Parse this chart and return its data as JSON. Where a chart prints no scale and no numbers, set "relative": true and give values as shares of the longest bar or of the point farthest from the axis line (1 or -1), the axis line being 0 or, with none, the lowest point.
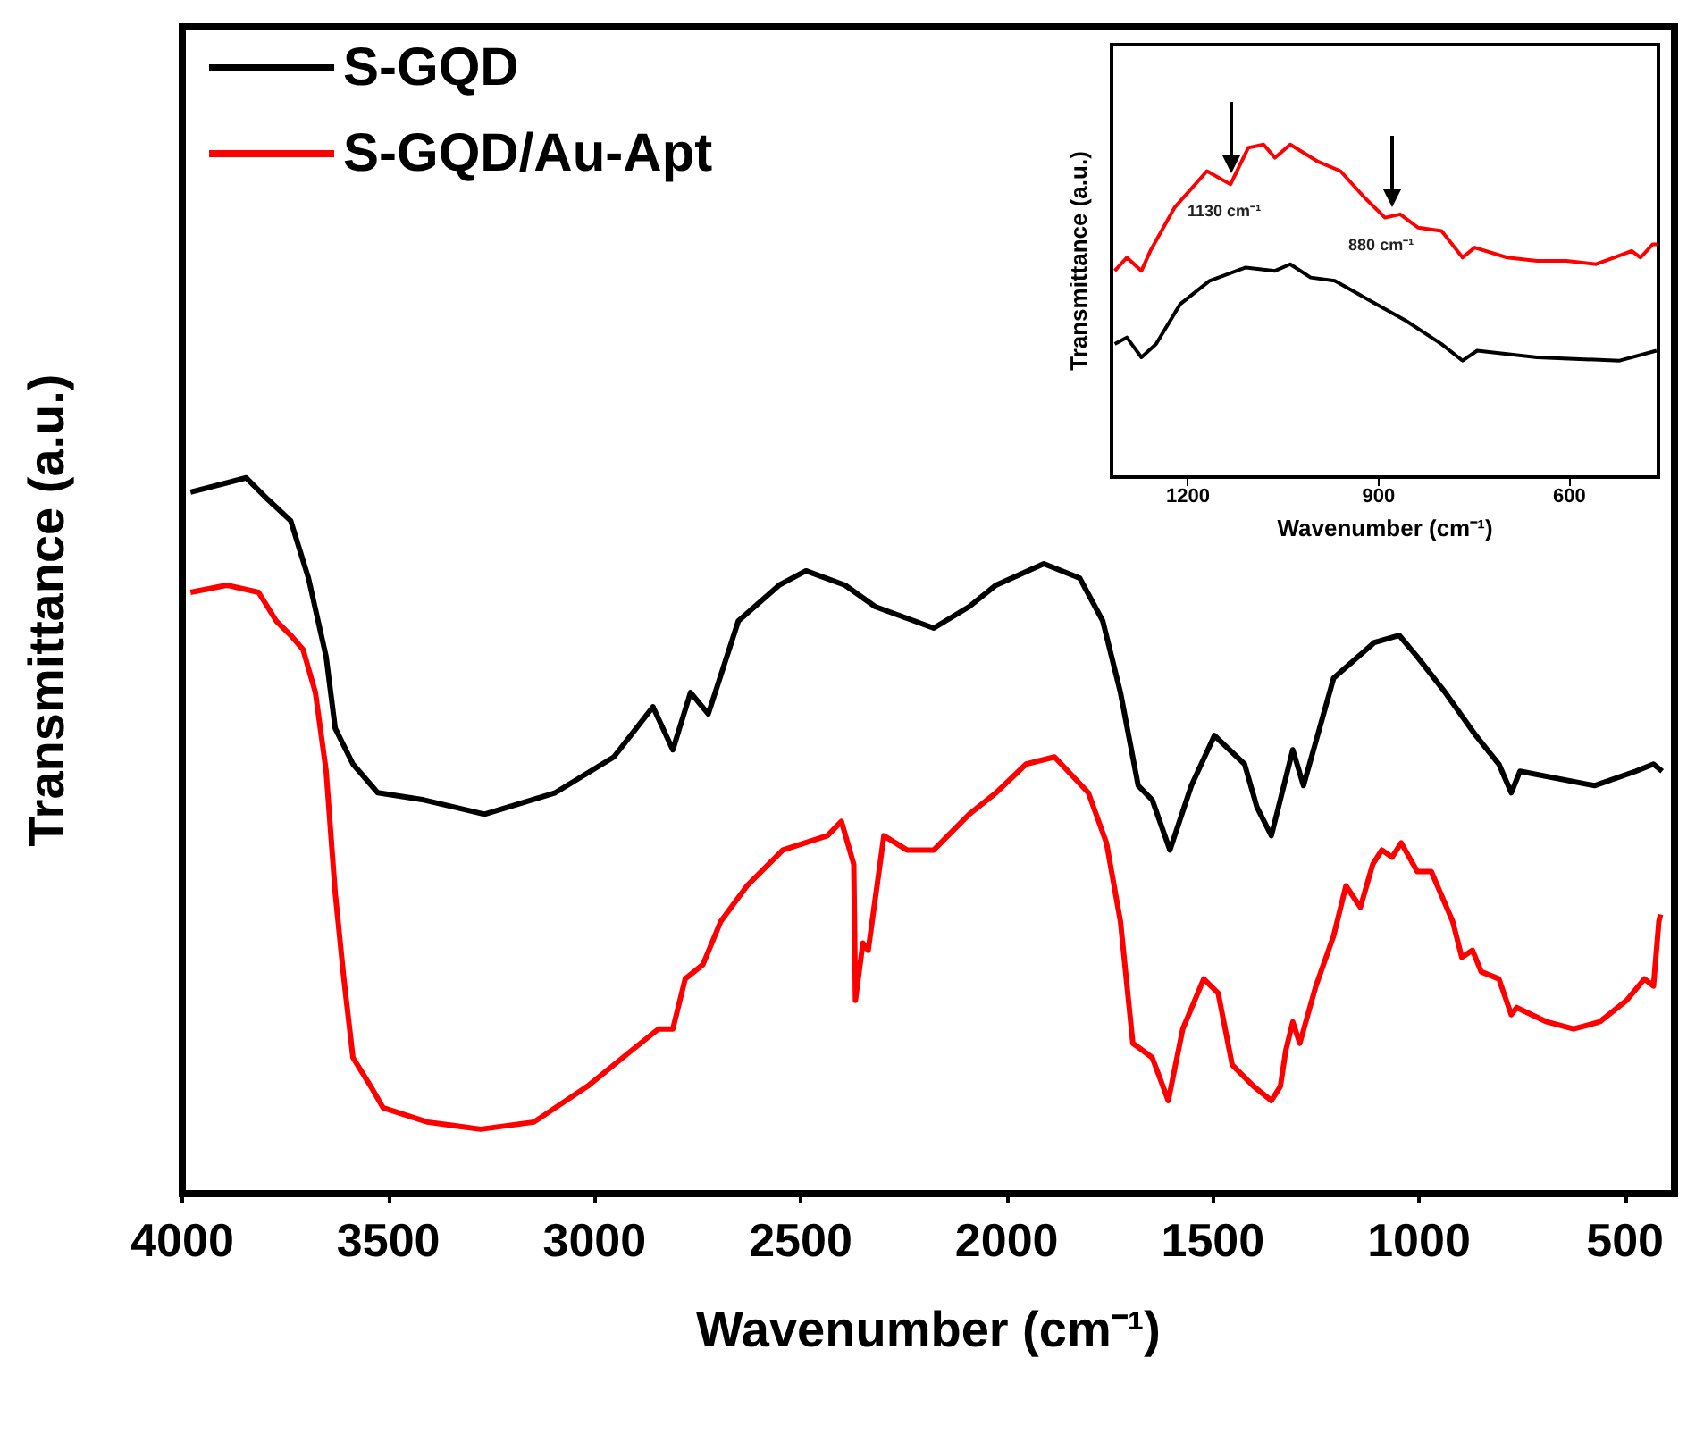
{
  "chart_data": [
    {
      "type": "line",
      "xlabel": "Wavenumber (cm⁻¹)",
      "ylabel": "Transmittance (a.u.)",
      "relative": true,
      "xlim": [
        4000,
        380
      ],
      "xticks": [
        4000,
        3500,
        3000,
        2500,
        2000,
        1500,
        1000,
        500
      ],
      "legend": "top left",
      "series": [
        {
          "name": "S-GQD",
          "color": "#000000",
          "x": [
            3980,
            3845,
            3793,
            3737,
            3694,
            3651,
            3629,
            3586,
            3526,
            3414,
            3267,
            3095,
            2953,
            2858,
            2810,
            2767,
            2724,
            2651,
            2552,
            2487,
            2392,
            2319,
            2177,
            2091,
            2026,
            1910,
            1823,
            1767,
            1724,
            1681,
            1647,
            1604,
            1552,
            1496,
            1423,
            1393,
            1358,
            1306,
            1280,
            1207,
            1108,
            1048,
            1004,
            936,
            862,
            806,
            776,
            755,
            574,
            474,
            431,
            410
          ],
          "values": [
            0.98,
            1.0,
            0.97,
            0.94,
            0.86,
            0.75,
            0.65,
            0.6,
            0.56,
            0.55,
            0.53,
            0.56,
            0.61,
            0.68,
            0.62,
            0.7,
            0.67,
            0.8,
            0.85,
            0.87,
            0.85,
            0.82,
            0.79,
            0.82,
            0.85,
            0.88,
            0.86,
            0.8,
            0.7,
            0.57,
            0.55,
            0.48,
            0.57,
            0.64,
            0.6,
            0.54,
            0.5,
            0.62,
            0.57,
            0.72,
            0.77,
            0.78,
            0.75,
            0.7,
            0.64,
            0.6,
            0.56,
            0.59,
            0.57,
            0.59,
            0.6,
            0.59
          ]
        },
        {
          "name": "S-GQD/Au-Apt",
          "color": "#ff0000",
          "x": [
            3980,
            3892,
            3815,
            3772,
            3737,
            3707,
            3677,
            3651,
            3629,
            3608,
            3586,
            3543,
            3513,
            3405,
            3276,
            3147,
            3017,
            2910,
            2845,
            2810,
            2780,
            2737,
            2694,
            2630,
            2543,
            2435,
            2401,
            2371,
            2367,
            2349,
            2336,
            2298,
            2242,
            2177,
            2091,
            2026,
            1953,
            1884,
            1802,
            1758,
            1724,
            1694,
            1647,
            1608,
            1573,
            1522,
            1487,
            1453,
            1401,
            1358,
            1336,
            1323,
            1306,
            1289,
            1250,
            1207,
            1177,
            1142,
            1112,
            1090,
            1065,
            1043,
            1004,
            970,
            918,
            896,
            870,
            849,
            806,
            776,
            763,
            690,
            625,
            561,
            496,
            453,
            431,
            418,
            414
          ],
          "values": [
            0.84,
            0.85,
            0.84,
            0.8,
            0.78,
            0.76,
            0.7,
            0.59,
            0.42,
            0.3,
            0.19,
            0.15,
            0.12,
            0.1,
            0.09,
            0.1,
            0.15,
            0.2,
            0.23,
            0.23,
            0.3,
            0.32,
            0.38,
            0.43,
            0.48,
            0.5,
            0.52,
            0.46,
            0.27,
            0.35,
            0.34,
            0.5,
            0.48,
            0.48,
            0.53,
            0.56,
            0.6,
            0.61,
            0.56,
            0.49,
            0.38,
            0.21,
            0.19,
            0.13,
            0.23,
            0.3,
            0.28,
            0.18,
            0.15,
            0.13,
            0.15,
            0.2,
            0.24,
            0.21,
            0.29,
            0.36,
            0.43,
            0.4,
            0.46,
            0.48,
            0.47,
            0.49,
            0.45,
            0.45,
            0.38,
            0.33,
            0.34,
            0.31,
            0.3,
            0.25,
            0.26,
            0.24,
            0.23,
            0.24,
            0.27,
            0.3,
            0.29,
            0.38,
            0.39
          ]
        }
      ]
    },
    {
      "type": "line",
      "xlabel": "Wavenumber (cm⁻¹)",
      "ylabel": "Transmittance (a.u.)",
      "relative": true,
      "xlim": [
        1320,
        460
      ],
      "xticks": [
        1200,
        900,
        600
      ],
      "annotations": [
        {
          "text": "1130 cm⁻¹",
          "x": 1133,
          "y": 0.88
        },
        {
          "text": "880 cm⁻¹",
          "x": 880,
          "y": 0.78
        }
      ],
      "series": [
        {
          "color": "#ff0000",
          "x": [
            1315,
            1296,
            1273,
            1259,
            1221,
            1170,
            1133,
            1105,
            1081,
            1063,
            1039,
            997,
            960,
            922,
            890,
            866,
            838,
            801,
            768,
            749,
            698,
            651,
            605,
            558,
            530,
            502,
            488,
            469,
            462
          ],
          "values": [
            0.62,
            0.66,
            0.62,
            0.68,
            0.81,
            0.92,
            0.88,
            0.99,
            1.0,
            0.96,
            1.0,
            0.95,
            0.92,
            0.84,
            0.78,
            0.79,
            0.75,
            0.74,
            0.66,
            0.69,
            0.66,
            0.65,
            0.65,
            0.64,
            0.66,
            0.68,
            0.66,
            0.7,
            0.7
          ]
        },
        {
          "color": "#000000",
          "x": [
            1315,
            1296,
            1273,
            1250,
            1212,
            1166,
            1109,
            1063,
            1039,
            1007,
            969,
            913,
            857,
            801,
            768,
            745,
            651,
            521,
            463
          ],
          "values": [
            0.4,
            0.42,
            0.36,
            0.4,
            0.52,
            0.59,
            0.63,
            0.62,
            0.64,
            0.6,
            0.59,
            0.53,
            0.47,
            0.4,
            0.35,
            0.38,
            0.36,
            0.35,
            0.38
          ]
        }
      ]
    }
  ]
}
